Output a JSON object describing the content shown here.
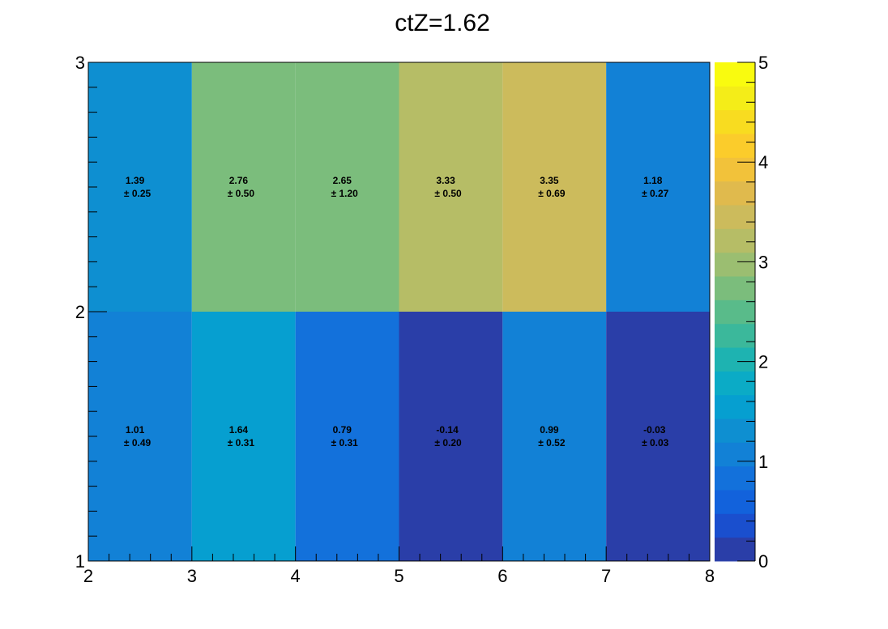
{
  "chart_data": {
    "type": "heatmap",
    "title": "ctZ=1.62",
    "xlabel": "",
    "ylabel": "",
    "x_edges": [
      2,
      3,
      4,
      5,
      6,
      7,
      8
    ],
    "y_edges": [
      1,
      2,
      3
    ],
    "x_ticks": [
      "2",
      "3",
      "4",
      "5",
      "6",
      "7",
      "8"
    ],
    "y_ticks": [
      "1",
      "2",
      "3"
    ],
    "zlim": [
      0,
      5
    ],
    "z_ticks": [
      "0",
      "1",
      "2",
      "3",
      "4",
      "5"
    ],
    "palette": [
      "#2a3ea8",
      "#1a4fce",
      "#1262dc",
      "#1371db",
      "#1281d6",
      "#0e8fd1",
      "#069fd0",
      "#0babc6",
      "#1eb3b1",
      "#3bb89b",
      "#59bb8a",
      "#7bbd7c",
      "#9bbe71",
      "#b6bd66",
      "#ccbb5c",
      "#e0ba4d",
      "#f2c23a",
      "#fbcc2b",
      "#f8dc20",
      "#f4ed18",
      "#f9fb0f"
    ],
    "values": [
      [
        1.01,
        1.64,
        0.79,
        -0.14,
        0.99,
        -0.03
      ],
      [
        1.39,
        2.76,
        2.65,
        3.33,
        3.35,
        1.18
      ]
    ],
    "labels": [
      [
        "1.01",
        "1.64",
        "0.79",
        "-0.14",
        "0.99",
        "-0.03"
      ],
      [
        "1.39",
        "2.76",
        "2.65",
        "3.33",
        "3.35",
        "1.18"
      ]
    ],
    "errors": [
      [
        "± 0.49",
        "± 0.31",
        "± 0.31",
        "± 0.20",
        "± 0.52",
        "± 0.03"
      ],
      [
        "± 0.25",
        "± 0.50",
        "± 1.20",
        "± 0.50",
        "± 0.69",
        "± 0.27"
      ]
    ]
  }
}
